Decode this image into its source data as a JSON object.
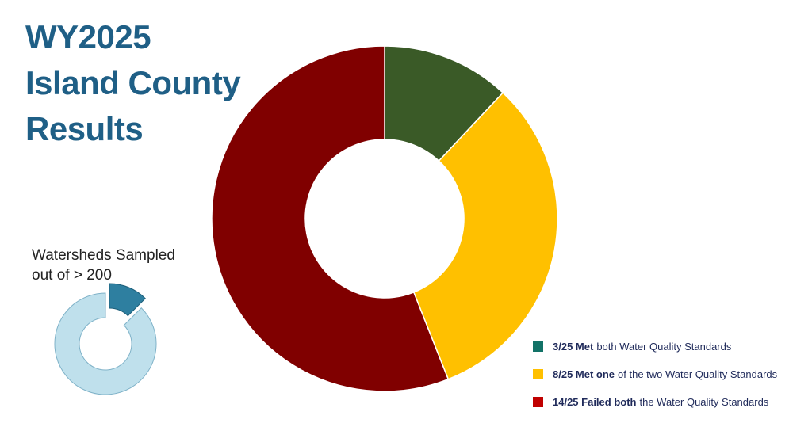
{
  "title_lines": [
    "WY2025",
    "Island County",
    "Results"
  ],
  "sampled": {
    "label_lines": [
      "Watersheds Sampled",
      "out of > 200"
    ],
    "sampled_count": 25,
    "total": 200,
    "colors": {
      "sampled": "#2e7fa0",
      "remaining": "#bfe0ec"
    }
  },
  "legend": [
    {
      "bold": "3/25 Met",
      "rest": "both Water Quality Standards",
      "color": "#127267"
    },
    {
      "bold": "8/25 Met one",
      "rest": "of the two Water Quality Standards",
      "color": "#ffc000"
    },
    {
      "bold": "14/25 Failed both",
      "rest": "the Water Quality Standards",
      "color": "#c00000"
    }
  ],
  "chart_data": {
    "type": "pie",
    "donut": true,
    "labels": [
      "3/25 Met both Water Quality Standards",
      "8/25 Met one of the two Water Quality Standards",
      "14/25 Failed both the Water Quality Standards"
    ],
    "values": [
      3,
      8,
      14
    ],
    "colors": [
      "#3a5a27",
      "#ffc000",
      "#800000"
    ],
    "legend_position": "bottom-right"
  }
}
